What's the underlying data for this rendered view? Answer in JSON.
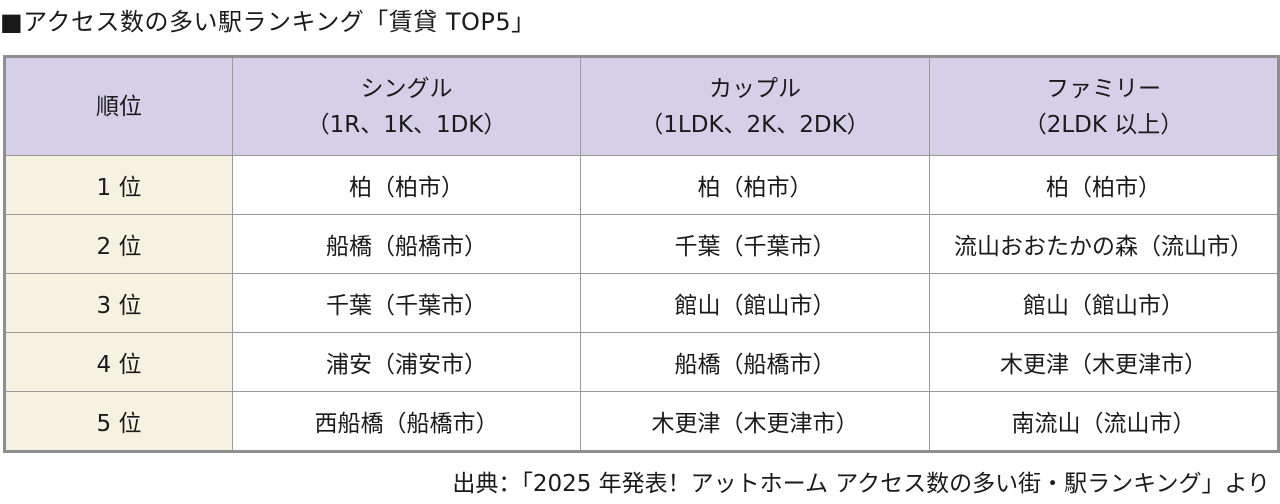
{
  "title": "■アクセス数の多い駅ランキング「賃貸 TOP5」",
  "table": {
    "header": {
      "rank": "順位",
      "single": {
        "label": "シングル",
        "sub": "（1R、1K、1DK）"
      },
      "couple": {
        "label": "カップル",
        "sub": "（1LDK、2K、2DK）"
      },
      "family": {
        "label": "ファミリー",
        "sub": "（2LDK 以上）"
      }
    },
    "rows": [
      {
        "rank": "1 位",
        "single": "柏（柏市）",
        "couple": "柏（柏市）",
        "family": "柏（柏市）"
      },
      {
        "rank": "2 位",
        "single": "船橋（船橋市）",
        "couple": "千葉（千葉市）",
        "family": "流山おおたかの森（流山市）"
      },
      {
        "rank": "3 位",
        "single": "千葉（千葉市）",
        "couple": "館山（館山市）",
        "family": "館山（館山市）"
      },
      {
        "rank": "4 位",
        "single": "浦安（浦安市）",
        "couple": "船橋（船橋市）",
        "family": "木更津（木更津市）"
      },
      {
        "rank": "5 位",
        "single": "西船橋（船橋市）",
        "couple": "木更津（木更津市）",
        "family": "南流山（流山市）"
      }
    ]
  },
  "source": "出典：「2025 年発表！アットホーム アクセス数の多い街・駅ランキング」より",
  "colors": {
    "header_bg": "#d5d0e8",
    "rank_bg": "#f6f2e2",
    "border": "#9a9a9a"
  }
}
